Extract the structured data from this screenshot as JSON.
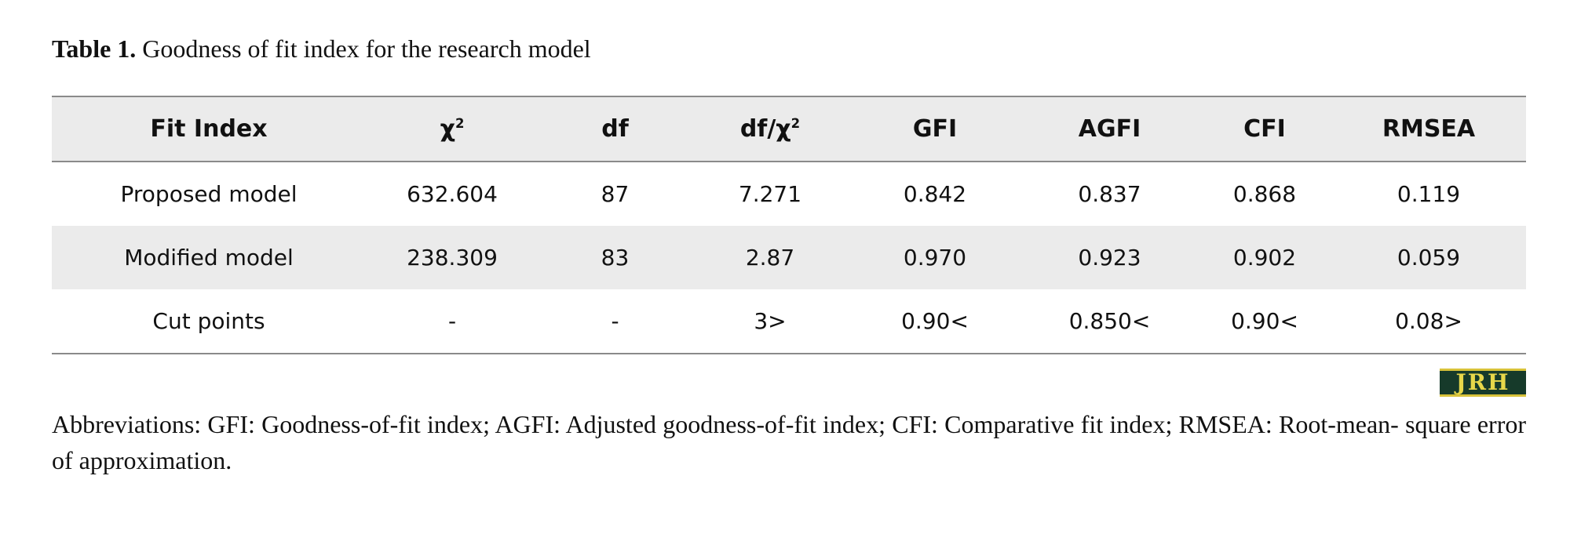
{
  "caption": {
    "label": "Table 1.",
    "text": " Goodness of fit index for the research model"
  },
  "table": {
    "headers": {
      "fit_index": "Fit Index",
      "chi_symbol": "χ",
      "chi_exp": "2",
      "df": "df",
      "df_chi_prefix": "df/χ",
      "df_chi_exp": "2",
      "gfi": "GFI",
      "agfi": "AGFI",
      "cfi": "CFI",
      "rmsea": "RMSEA"
    },
    "rows": [
      [
        "Proposed model",
        "632.604",
        "87",
        "7.271",
        "0.842",
        "0.837",
        "0.868",
        "0.119"
      ],
      [
        "Modified model",
        "238.309",
        "83",
        "2.87",
        "0.970",
        "0.923",
        "0.902",
        "0.059"
      ],
      [
        "Cut points",
        "-",
        "-",
        "3>",
        "0.90<",
        "0.850<",
        "0.90<",
        "0.08>"
      ]
    ]
  },
  "logo": {
    "text": "JRH"
  },
  "note": "Abbreviations: GFI: Goodness-of-fit index; AGFI: Adjusted goodness-of-fit index; CFI: Comparative fit index; RMSEA: Root-mean- square error of approximation."
}
